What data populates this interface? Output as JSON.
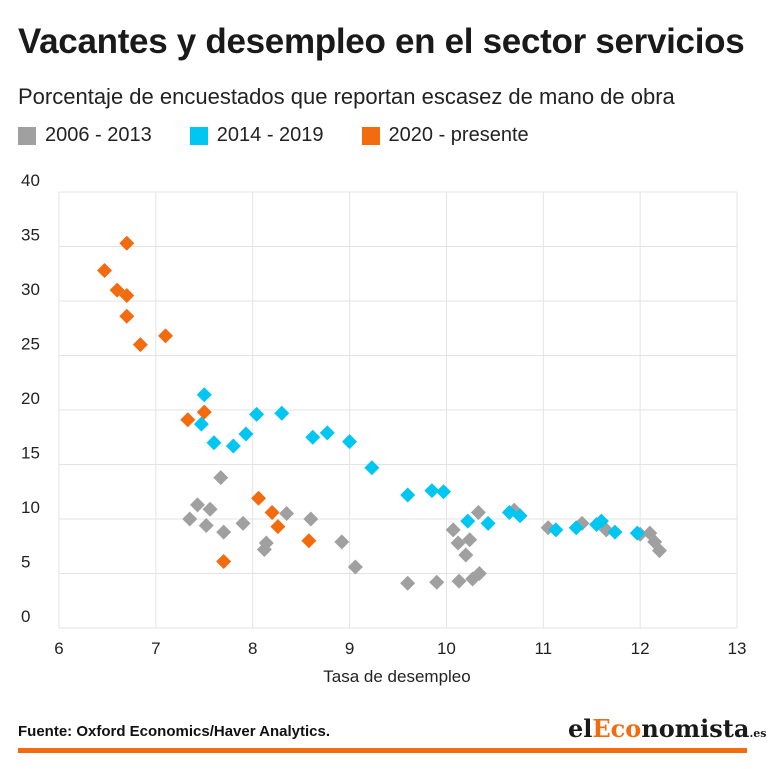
{
  "header": {
    "title": "Vacantes y desempleo en el sector servicios",
    "subtitle": "Porcentaje de encuestados que reportan escasez de mano de obra"
  },
  "footer": {
    "source": "Fuente: Oxford Economics/Haver Analytics.",
    "brand_prefix": "el",
    "brand_accent": "Eco",
    "brand_suffix": "nomista",
    "brand_domain": ".es"
  },
  "colors": {
    "gray": "#a0a0a0",
    "blue": "#00c6f2",
    "orange": "#f26b0f",
    "grid": "#e3e3e3",
    "accent": "#f26b0f"
  },
  "chart_data": {
    "type": "scatter",
    "title": "Vacantes y desempleo en el sector servicios",
    "subtitle": "Porcentaje de encuestados que reportan escasez de mano de obra",
    "xlabel": "Tasa de desempleo",
    "ylabel": "",
    "xlim": [
      6,
      13
    ],
    "ylim": [
      0,
      40
    ],
    "xticks": [
      "6",
      "7",
      "8",
      "9",
      "10",
      "11",
      "12",
      "13"
    ],
    "yticks": [
      "0",
      "5",
      "10",
      "15",
      "20",
      "25",
      "30",
      "35",
      "40"
    ],
    "grid": true,
    "legend_position": "top-left",
    "series": [
      {
        "name": "2006 - 2013",
        "color": "#a0a0a0",
        "points": [
          [
            7.35,
            10.0
          ],
          [
            7.43,
            11.3
          ],
          [
            7.52,
            9.4
          ],
          [
            7.56,
            10.9
          ],
          [
            7.67,
            13.8
          ],
          [
            7.7,
            8.8
          ],
          [
            7.9,
            9.6
          ],
          [
            8.12,
            7.2
          ],
          [
            8.14,
            7.8
          ],
          [
            8.35,
            10.5
          ],
          [
            8.6,
            10.0
          ],
          [
            8.92,
            7.9
          ],
          [
            9.06,
            5.6
          ],
          [
            9.6,
            4.1
          ],
          [
            9.9,
            4.2
          ],
          [
            10.07,
            9.0
          ],
          [
            10.12,
            7.8
          ],
          [
            10.13,
            4.3
          ],
          [
            10.2,
            6.7
          ],
          [
            10.24,
            8.1
          ],
          [
            10.27,
            4.5
          ],
          [
            10.33,
            10.6
          ],
          [
            10.34,
            5.0
          ],
          [
            10.7,
            10.8
          ],
          [
            11.05,
            9.2
          ],
          [
            11.4,
            9.6
          ],
          [
            11.65,
            9.0
          ],
          [
            12.0,
            8.6
          ],
          [
            12.1,
            8.7
          ],
          [
            12.15,
            7.9
          ],
          [
            12.2,
            7.1
          ]
        ]
      },
      {
        "name": "2014 - 2019",
        "color": "#00c6f2",
        "points": [
          [
            7.5,
            21.4
          ],
          [
            7.47,
            18.7
          ],
          [
            7.6,
            17.0
          ],
          [
            7.8,
            16.7
          ],
          [
            7.93,
            17.8
          ],
          [
            8.04,
            19.6
          ],
          [
            8.3,
            19.7
          ],
          [
            8.62,
            17.5
          ],
          [
            8.77,
            17.9
          ],
          [
            9.0,
            17.1
          ],
          [
            9.23,
            14.7
          ],
          [
            9.6,
            12.2
          ],
          [
            9.85,
            12.6
          ],
          [
            9.97,
            12.5
          ],
          [
            10.22,
            9.8
          ],
          [
            10.43,
            9.6
          ],
          [
            10.65,
            10.6
          ],
          [
            10.76,
            10.3
          ],
          [
            11.13,
            9.0
          ],
          [
            11.34,
            9.2
          ],
          [
            11.55,
            9.5
          ],
          [
            11.6,
            9.8
          ],
          [
            11.74,
            8.8
          ],
          [
            11.97,
            8.7
          ]
        ]
      },
      {
        "name": "2020 - presente",
        "color": "#f26b0f",
        "points": [
          [
            6.47,
            32.8
          ],
          [
            6.6,
            31.0
          ],
          [
            6.7,
            35.3
          ],
          [
            6.7,
            30.5
          ],
          [
            6.7,
            28.6
          ],
          [
            6.84,
            26.0
          ],
          [
            7.1,
            26.8
          ],
          [
            7.33,
            19.1
          ],
          [
            7.5,
            19.8
          ],
          [
            7.7,
            6.1
          ],
          [
            8.06,
            11.9
          ],
          [
            8.2,
            10.6
          ],
          [
            8.26,
            9.3
          ],
          [
            8.58,
            8.0
          ]
        ]
      }
    ]
  }
}
